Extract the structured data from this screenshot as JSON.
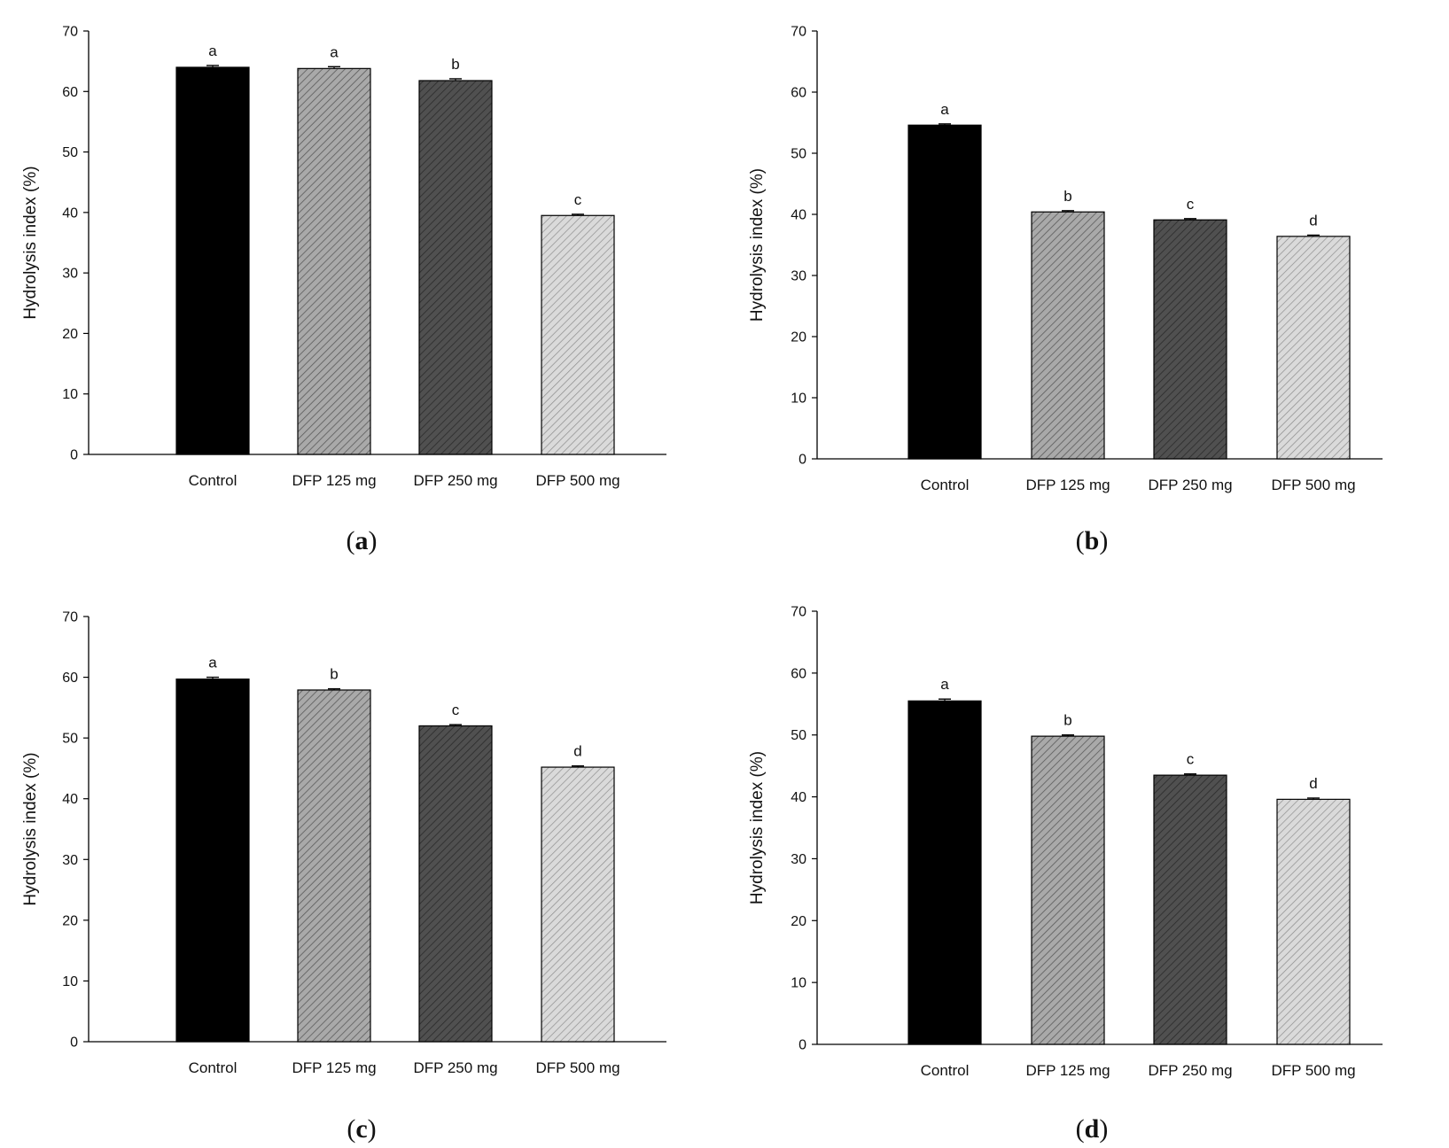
{
  "chart_data": [
    {
      "type": "bar",
      "panel": "a",
      "caption": "a",
      "title": "",
      "xlabel": "",
      "ylabel": "Hydrolysis index (%)",
      "ylim": [
        0,
        70
      ],
      "yticks": [
        "0",
        "10",
        "20",
        "30",
        "40",
        "50",
        "60",
        "70"
      ],
      "categories": [
        "Control",
        "DFP 125 mg",
        "DFP 250 mg",
        "DFP 500 mg"
      ],
      "values": [
        64.0,
        63.8,
        61.8,
        39.5
      ],
      "errors": [
        0.3,
        0.3,
        0.3,
        0.2
      ],
      "significance": [
        "a",
        "a",
        "b",
        "c"
      ]
    },
    {
      "type": "bar",
      "panel": "b",
      "caption": "b",
      "title": "",
      "xlabel": "",
      "ylabel": "Hydrolysis index (%)",
      "ylim": [
        0,
        70
      ],
      "yticks": [
        "0",
        "10",
        "20",
        "30",
        "40",
        "50",
        "60",
        "70"
      ],
      "categories": [
        "Control",
        "DFP 125 mg",
        "DFP 250 mg",
        "DFP 500 mg"
      ],
      "values": [
        54.6,
        40.4,
        39.1,
        36.4
      ],
      "errors": [
        0.2,
        0.2,
        0.2,
        0.2
      ],
      "significance": [
        "a",
        "b",
        "c",
        "d"
      ]
    },
    {
      "type": "bar",
      "panel": "c",
      "caption": "c",
      "title": "",
      "xlabel": "",
      "ylabel": "Hydrolysis index (%)",
      "ylim": [
        0,
        70
      ],
      "yticks": [
        "0",
        "10",
        "20",
        "30",
        "40",
        "50",
        "60",
        "70"
      ],
      "categories": [
        "Control",
        "DFP 125 mg",
        "DFP 250 mg",
        "DFP 500 mg"
      ],
      "values": [
        59.7,
        57.9,
        52.0,
        45.2
      ],
      "errors": [
        0.3,
        0.2,
        0.2,
        0.2
      ],
      "significance": [
        "a",
        "b",
        "c",
        "d"
      ]
    },
    {
      "type": "bar",
      "panel": "d",
      "caption": "d",
      "title": "",
      "xlabel": "",
      "ylabel": "Hydrolysis index (%)",
      "ylim": [
        0,
        70
      ],
      "yticks": [
        "0",
        "10",
        "20",
        "30",
        "40",
        "50",
        "60",
        "70"
      ],
      "categories": [
        "Control",
        "DFP 125 mg",
        "DFP 250 mg",
        "DFP 500 mg"
      ],
      "values": [
        55.5,
        49.8,
        43.5,
        39.6
      ],
      "errors": [
        0.3,
        0.2,
        0.2,
        0.2
      ],
      "significance": [
        "a",
        "b",
        "c",
        "d"
      ]
    }
  ],
  "colors": {
    "bar_fill": [
      "#000000",
      "#a9a9a9",
      "#505050",
      "#d8d8d8"
    ],
    "bar_hatch": [
      "none",
      "#5a5a5a",
      "#2a2a2a",
      "#8c8c8c"
    ],
    "axis": "#000000"
  }
}
